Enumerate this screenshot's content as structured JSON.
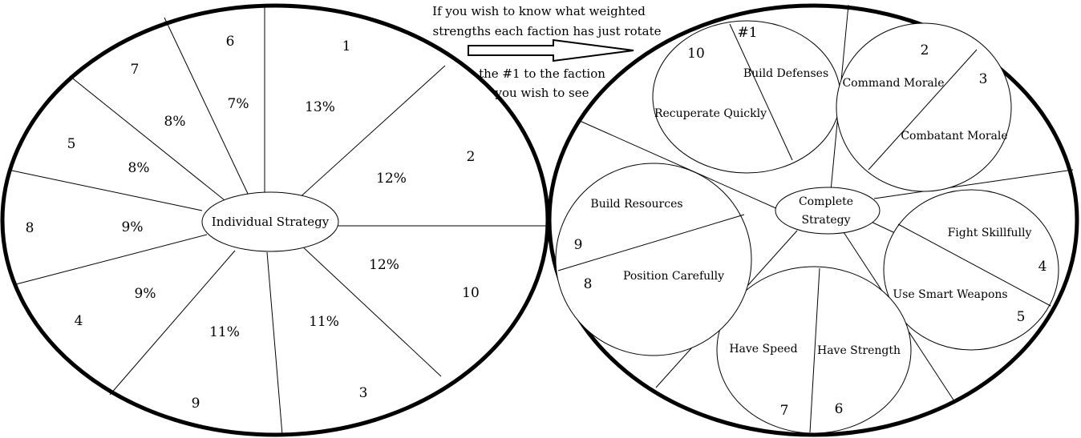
{
  "note": {
    "line1": "If you wish to know what weighted",
    "line2": "strengths each faction has just rotate",
    "line3": "the #1 to  the faction",
    "line4": "you wish to see"
  },
  "left_wheel": {
    "center_label": "Individual Strategy",
    "sectors": [
      {
        "number": "1",
        "percent": "13%"
      },
      {
        "number": "2",
        "percent": "12%"
      },
      {
        "number": "10",
        "percent": "12%"
      },
      {
        "number": "3",
        "percent": "11%"
      },
      {
        "number": "9",
        "percent": "11%"
      },
      {
        "number": "4",
        "percent": "9%"
      },
      {
        "number": "8",
        "percent": "9%"
      },
      {
        "number": "5",
        "percent": "8%"
      },
      {
        "number": "7",
        "percent": "8%"
      },
      {
        "number": "6",
        "percent": "7%"
      }
    ]
  },
  "right_wheel": {
    "center_label_line1": "Complete",
    "center_label_line2": "Strategy",
    "circles": [
      {
        "labels": [
          "Build Defenses",
          "Recuperate Quickly"
        ],
        "numbers": [
          "#1",
          "10"
        ]
      },
      {
        "labels": [
          "Command Morale",
          "Combatant Morale"
        ],
        "numbers": [
          "2",
          "3"
        ]
      },
      {
        "labels": [
          "Fight Skillfully",
          "Use Smart Weapons"
        ],
        "numbers": [
          "4",
          "5"
        ]
      },
      {
        "labels": [
          "Have Strength",
          "Have Speed"
        ],
        "numbers": [
          "6",
          "7"
        ]
      },
      {
        "labels": [
          "Build Resources",
          "Position Carefully"
        ],
        "numbers": [
          "9",
          "8"
        ]
      }
    ]
  }
}
